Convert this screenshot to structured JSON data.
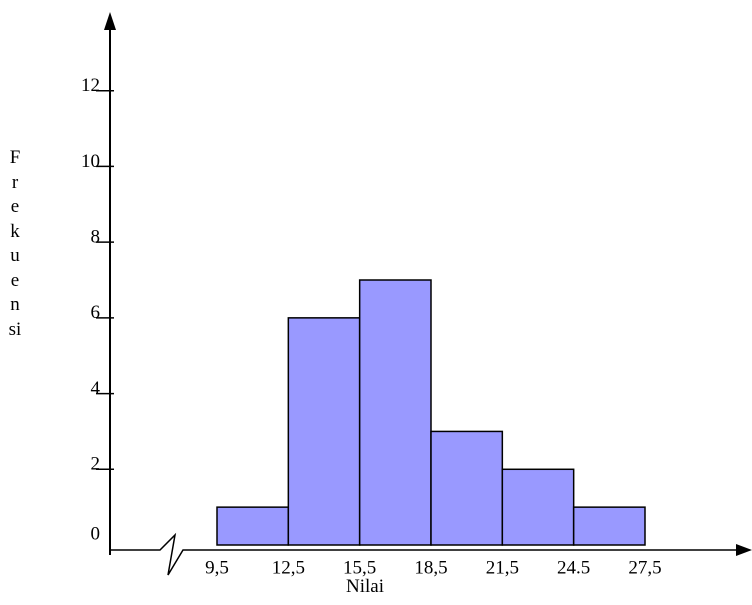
{
  "chart_data": {
    "type": "histogram",
    "x_label": "Nilai",
    "y_label": "Frekuensi",
    "bins": [
      9.5,
      12.5,
      15.5,
      18.5,
      21.5,
      24.5,
      27.5
    ],
    "values": [
      1,
      6,
      7,
      3,
      2,
      1
    ],
    "color": "#9999ff",
    "xlim": [
      5,
      32
    ],
    "xticks": [
      {
        "value": 9.5,
        "label": "9,5"
      },
      {
        "value": 12.5,
        "label": "12,5"
      },
      {
        "value": 15.5,
        "label": "15,5"
      },
      {
        "value": 18.5,
        "label": "18,5"
      },
      {
        "value": 21.5,
        "label": "21,5"
      },
      24.5,
      {
        "value": 27.5,
        "label": "27,5"
      }
    ],
    "ylim": [
      0,
      14
    ],
    "yticks": [
      0,
      2,
      4,
      6,
      8,
      10,
      12
    ]
  }
}
